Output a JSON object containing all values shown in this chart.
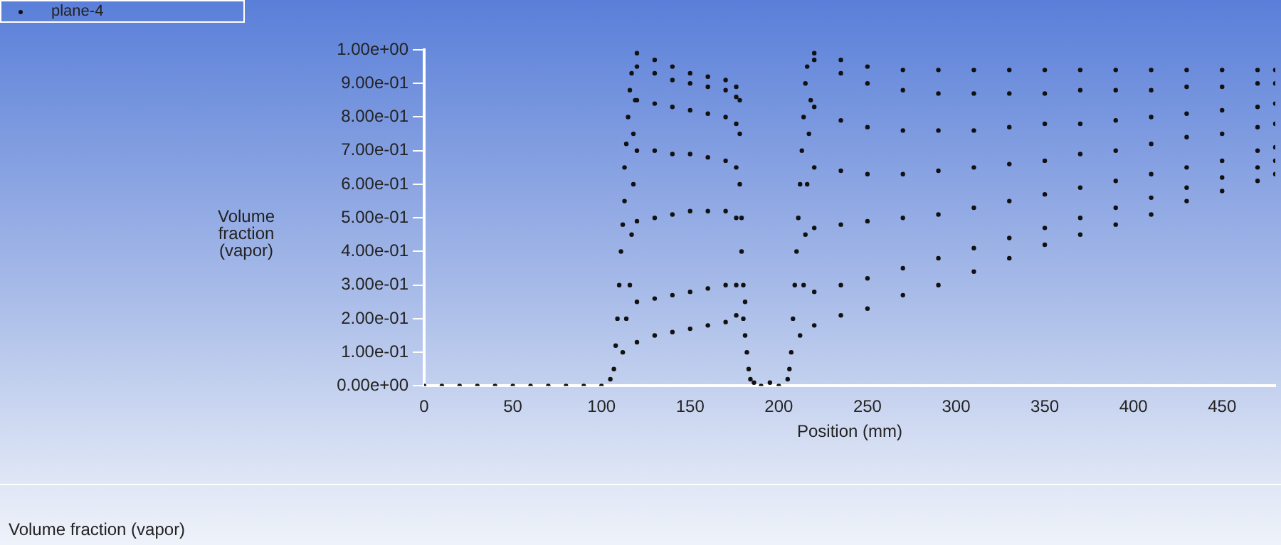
{
  "chart_data": {
    "type": "scatter",
    "title": "Volume fraction (vapor)",
    "xlabel": "Position (mm)",
    "ylabel": "Volume fraction (vapor)",
    "xlim": [
      0,
      480
    ],
    "xticks": [
      0,
      50,
      100,
      150,
      200,
      250,
      300,
      350,
      400,
      450
    ],
    "ylim": [
      0,
      1
    ],
    "yticks": [
      {
        "value": 0,
        "label": "0.00e+00"
      },
      {
        "value": 0.1,
        "label": "1.00e-01"
      },
      {
        "value": 0.2,
        "label": "2.00e-01"
      },
      {
        "value": 0.3,
        "label": "3.00e-01"
      },
      {
        "value": 0.4,
        "label": "4.00e-01"
      },
      {
        "value": 0.5,
        "label": "5.00e-01"
      },
      {
        "value": 0.6,
        "label": "6.00e-01"
      },
      {
        "value": 0.7,
        "label": "7.00e-01"
      },
      {
        "value": 0.8,
        "label": "8.00e-01"
      },
      {
        "value": 0.9,
        "label": "9.00e-01"
      },
      {
        "value": 1,
        "label": "1.00e+00"
      }
    ],
    "grid": false,
    "legend": "top left",
    "marker": "circle",
    "series": [
      {
        "name": "plane-4",
        "color": "#111111",
        "x": [
          0,
          10,
          20,
          30,
          40,
          50,
          60,
          70,
          80,
          90,
          100,
          105,
          107,
          108,
          109,
          110,
          111,
          112,
          113,
          113,
          114,
          115,
          116,
          117,
          112,
          114,
          116,
          117,
          118,
          118,
          119,
          120,
          130,
          140,
          150,
          160,
          170,
          176,
          120,
          130,
          140,
          150,
          160,
          170,
          176,
          120,
          130,
          140,
          150,
          160,
          170,
          176,
          120,
          130,
          140,
          150,
          160,
          170,
          176,
          120,
          130,
          140,
          150,
          160,
          170,
          176,
          120,
          130,
          140,
          150,
          160,
          170,
          176,
          120,
          130,
          140,
          150,
          160,
          170,
          176,
          178,
          179,
          179,
          180,
          180,
          181,
          182,
          183,
          184,
          178,
          178,
          181,
          186,
          190,
          195,
          200,
          205,
          206,
          207,
          208,
          209,
          210,
          211,
          212,
          213,
          214,
          215,
          216,
          212,
          214,
          215,
          216,
          217,
          218,
          220,
          235,
          250,
          270,
          290,
          310,
          330,
          350,
          370,
          390,
          410,
          430,
          450,
          470,
          480,
          220,
          235,
          250,
          270,
          290,
          310,
          330,
          350,
          370,
          390,
          410,
          430,
          450,
          470,
          480,
          220,
          235,
          250,
          270,
          290,
          310,
          330,
          350,
          370,
          390,
          410,
          430,
          450,
          470,
          480,
          220,
          235,
          250,
          270,
          290,
          310,
          330,
          350,
          370,
          390,
          410,
          430,
          450,
          470,
          480,
          220,
          235,
          250,
          270,
          290,
          310,
          330,
          350,
          370,
          390,
          410,
          430,
          450,
          470,
          480,
          220,
          235,
          250,
          270,
          290,
          310,
          330,
          350,
          370,
          390,
          410,
          430,
          450,
          470,
          480,
          220,
          235,
          250,
          270,
          290,
          310,
          330,
          350,
          370,
          390,
          410,
          430,
          450,
          470,
          480
        ],
        "values": [
          0,
          0,
          0,
          0,
          0,
          0,
          0,
          0,
          0,
          0,
          0,
          0.02,
          0.05,
          0.12,
          0.2,
          0.3,
          0.4,
          0.48,
          0.55,
          0.65,
          0.72,
          0.8,
          0.88,
          0.93,
          0.1,
          0.2,
          0.3,
          0.45,
          0.6,
          0.75,
          0.85,
          0.99,
          0.97,
          0.95,
          0.93,
          0.92,
          0.91,
          0.89,
          0.95,
          0.93,
          0.91,
          0.9,
          0.89,
          0.88,
          0.86,
          0.85,
          0.84,
          0.83,
          0.82,
          0.81,
          0.8,
          0.78,
          0.7,
          0.7,
          0.69,
          0.69,
          0.68,
          0.67,
          0.65,
          0.49,
          0.5,
          0.51,
          0.52,
          0.52,
          0.52,
          0.5,
          0.25,
          0.26,
          0.27,
          0.28,
          0.29,
          0.3,
          0.3,
          0.13,
          0.15,
          0.16,
          0.17,
          0.18,
          0.19,
          0.21,
          0.6,
          0.5,
          0.4,
          0.3,
          0.2,
          0.15,
          0.1,
          0.05,
          0.02,
          0.75,
          0.85,
          0.25,
          0.01,
          0,
          0.01,
          0,
          0.02,
          0.05,
          0.1,
          0.2,
          0.3,
          0.4,
          0.5,
          0.6,
          0.7,
          0.8,
          0.9,
          0.95,
          0.15,
          0.3,
          0.45,
          0.6,
          0.75,
          0.85,
          0.99,
          0.97,
          0.95,
          0.94,
          0.94,
          0.94,
          0.94,
          0.94,
          0.94,
          0.94,
          0.94,
          0.94,
          0.94,
          0.94,
          0.94,
          0.97,
          0.93,
          0.9,
          0.88,
          0.87,
          0.87,
          0.87,
          0.87,
          0.88,
          0.88,
          0.88,
          0.89,
          0.89,
          0.9,
          0.9,
          0.83,
          0.79,
          0.77,
          0.76,
          0.76,
          0.76,
          0.77,
          0.78,
          0.78,
          0.79,
          0.8,
          0.81,
          0.82,
          0.83,
          0.84,
          0.65,
          0.64,
          0.63,
          0.63,
          0.64,
          0.65,
          0.66,
          0.67,
          0.69,
          0.7,
          0.72,
          0.74,
          0.75,
          0.77,
          0.78,
          0.47,
          0.48,
          0.49,
          0.5,
          0.51,
          0.53,
          0.55,
          0.57,
          0.59,
          0.61,
          0.63,
          0.65,
          0.67,
          0.7,
          0.71,
          0.28,
          0.3,
          0.32,
          0.35,
          0.38,
          0.41,
          0.44,
          0.47,
          0.5,
          0.53,
          0.56,
          0.59,
          0.62,
          0.65,
          0.67,
          0.18,
          0.21,
          0.23,
          0.27,
          0.3,
          0.34,
          0.38,
          0.42,
          0.45,
          0.48,
          0.51,
          0.55,
          0.58,
          0.61,
          0.63
        ]
      }
    ]
  }
}
